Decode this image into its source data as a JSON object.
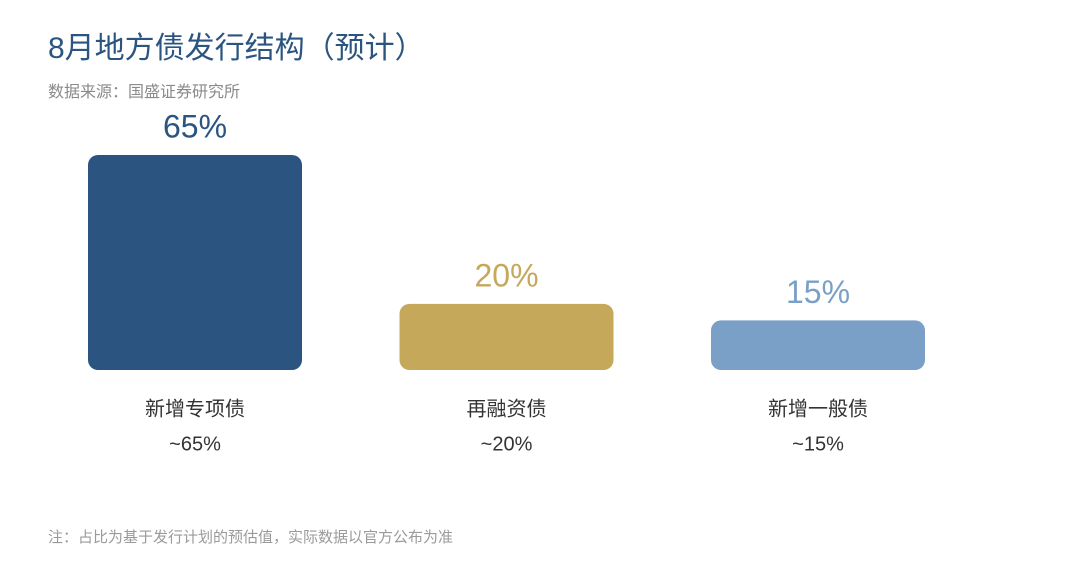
{
  "chart_data": {
    "type": "bar",
    "title": "8月地方债发行结构（预计）",
    "subtitle": "数据来源：国盛证券研究所",
    "categories": [
      "新增专项债",
      "再融资债",
      "新增一般债"
    ],
    "values": [
      65,
      20,
      15
    ],
    "value_labels": [
      "65%",
      "20%",
      "15%"
    ],
    "approx_labels": [
      "~65%",
      "~20%",
      "~15%"
    ],
    "colors": [
      "#2b5580",
      "#c5a85a",
      "#7aa0c8"
    ],
    "note": "注：占比为基于发行计划的预估值，实际数据以官方公布为准"
  }
}
